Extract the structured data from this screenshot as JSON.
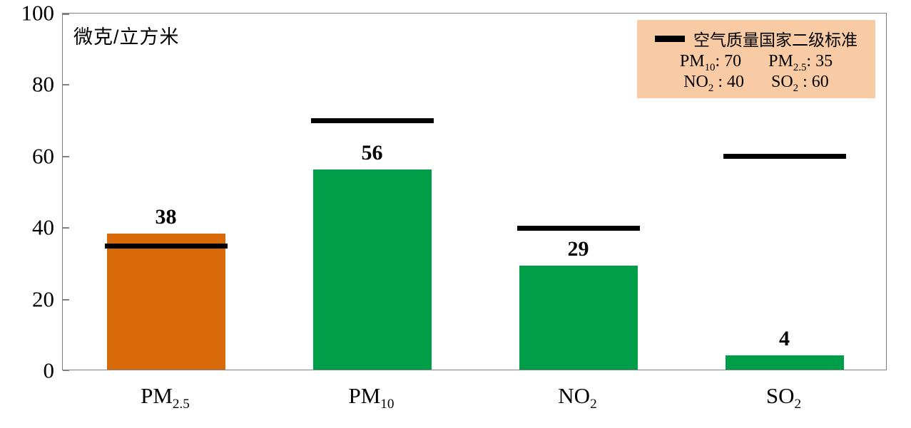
{
  "chart_data": {
    "type": "bar",
    "unit_label": "微克/立方米",
    "ylim": [
      0,
      100
    ],
    "yticks": [
      0,
      20,
      40,
      60,
      80,
      100
    ],
    "categories": [
      "PM2.5",
      "PM10",
      "NO2",
      "SO2"
    ],
    "category_labels": [
      {
        "base": "PM",
        "sub": "2.5"
      },
      {
        "base": "PM",
        "sub": "10"
      },
      {
        "base": "NO",
        "sub": "2"
      },
      {
        "base": "SO",
        "sub": "2"
      }
    ],
    "values": [
      38,
      56,
      29,
      4
    ],
    "bar_colors": [
      "#D96A0A",
      "#009E49",
      "#009E49",
      "#009E49"
    ],
    "standard_values": [
      35,
      70,
      40,
      60
    ],
    "standard_line_color": "#000000",
    "axis_color": "#808080",
    "grid": false,
    "legend": {
      "title": "空气质量国家二级标准",
      "position": "top-right",
      "background": "#F9CBA4",
      "rows": [
        [
          {
            "base": "PM",
            "sub": "10",
            "suffix": ": 70"
          },
          {
            "base": "PM",
            "sub": "2.5",
            "suffix": ": 35"
          }
        ],
        [
          {
            "base": "NO",
            "sub": "2",
            "suffix": " : 40"
          },
          {
            "base": "SO",
            "sub": "2",
            "suffix": " : 60"
          }
        ]
      ]
    }
  }
}
